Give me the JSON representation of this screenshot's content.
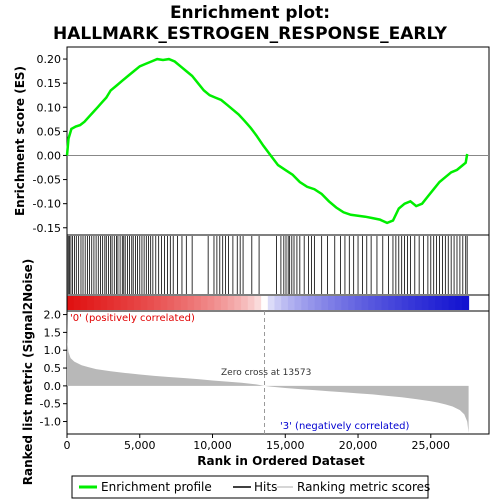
{
  "chart_data": {
    "type": "line",
    "title_lines": [
      "Enrichment plot:",
      "HALLMARK_ESTROGEN_RESPONSE_EARLY"
    ],
    "xlabel": "Rank in Ordered Dataset",
    "es_panel": {
      "ylabel": "Enrichment score (ES)",
      "ylim": [
        -0.165,
        0.225
      ],
      "yticks": [
        -0.15,
        -0.1,
        -0.05,
        0.0,
        0.05,
        0.1,
        0.15,
        0.2
      ],
      "ytick_labels": [
        "-0.15",
        "-0.10",
        "-0.05",
        "0.00",
        "0.05",
        "0.10",
        "0.15",
        "0.20"
      ],
      "series": [
        {
          "name": "Enrichment profile",
          "color": "#00ee00",
          "x": [
            0,
            100,
            300,
            600,
            900,
            1200,
            1500,
            1800,
            2100,
            2400,
            2700,
            3000,
            3400,
            3800,
            4200,
            4600,
            5000,
            5400,
            5800,
            6200,
            6600,
            7000,
            7400,
            7800,
            8200,
            8600,
            9000,
            9400,
            9800,
            10200,
            10600,
            11000,
            11400,
            11800,
            12200,
            12600,
            13000,
            13500,
            14000,
            14500,
            15000,
            15500,
            16000,
            16500,
            17000,
            17500,
            18000,
            18500,
            19000,
            19500,
            20000,
            20500,
            21000,
            21500,
            22000,
            22400,
            22800,
            23200,
            23600,
            24000,
            24400,
            24800,
            25200,
            25600,
            26000,
            26400,
            26800,
            27000,
            27200,
            27400,
            27500
          ],
          "y": [
            0.0,
            0.035,
            0.055,
            0.06,
            0.063,
            0.07,
            0.08,
            0.09,
            0.1,
            0.11,
            0.12,
            0.135,
            0.145,
            0.155,
            0.165,
            0.175,
            0.185,
            0.19,
            0.195,
            0.2,
            0.198,
            0.2,
            0.195,
            0.185,
            0.175,
            0.165,
            0.15,
            0.135,
            0.125,
            0.12,
            0.115,
            0.105,
            0.095,
            0.085,
            0.072,
            0.058,
            0.042,
            0.02,
            0.0,
            -0.02,
            -0.03,
            -0.04,
            -0.055,
            -0.065,
            -0.07,
            -0.08,
            -0.095,
            -0.108,
            -0.118,
            -0.123,
            -0.125,
            -0.127,
            -0.13,
            -0.133,
            -0.14,
            -0.135,
            -0.11,
            -0.1,
            -0.095,
            -0.105,
            -0.1,
            -0.085,
            -0.07,
            -0.055,
            -0.045,
            -0.035,
            -0.03,
            -0.025,
            -0.02,
            -0.015,
            0.003
          ]
        }
      ],
      "hits": [
        20,
        90,
        180,
        270,
        380,
        520,
        640,
        800,
        960,
        1100,
        1250,
        1400,
        1550,
        1700,
        1850,
        2000,
        2150,
        2300,
        2450,
        2600,
        2700,
        2850,
        3000,
        3100,
        3250,
        3400,
        3500,
        3650,
        3800,
        3900,
        4000,
        4150,
        4300,
        4450,
        4550,
        4700,
        4850,
        5000,
        5150,
        5300,
        5450,
        5600,
        5750,
        5900,
        6100,
        6300,
        6500,
        6700,
        6900,
        7100,
        7300,
        7600,
        7900,
        8200,
        8600,
        9700,
        10100,
        10300,
        10500,
        10700,
        10900,
        11100,
        11400,
        11700,
        11900,
        12100,
        12700,
        13200,
        14400,
        14700,
        14900,
        15050,
        15200,
        15300,
        15450,
        15600,
        15800,
        16000,
        16300,
        16600,
        16800,
        17000,
        17500,
        17900,
        18400,
        18800,
        19100,
        19400,
        19700,
        20000,
        20300,
        20600,
        20900,
        21300,
        21700,
        22100,
        22400,
        22600,
        22800,
        23000,
        23200,
        23400,
        23600,
        23900,
        24200,
        24500,
        24800,
        25000,
        25200,
        25400,
        25600,
        25800,
        26000,
        26200,
        26400,
        26600,
        26800,
        27000,
        27200,
        27400,
        27500
      ]
    },
    "metric_panel": {
      "ylabel": "Ranked list metric (Signal2Noise)",
      "ylim": [
        -1.35,
        2.1
      ],
      "yticks": [
        -1.0,
        -0.5,
        0.0,
        0.5,
        1.0,
        1.5,
        2.0
      ],
      "ytick_labels": [
        "-1.0",
        "-0.5",
        "0.0",
        "0.5",
        "1.0",
        "1.5",
        "2.0"
      ],
      "curve": {
        "x": [
          0,
          30,
          100,
          250,
          500,
          1000,
          1500,
          2000,
          3000,
          4000,
          5000,
          6000,
          7000,
          8000,
          9000,
          10000,
          11000,
          12000,
          13000,
          13573,
          14000,
          15000,
          16000,
          17000,
          18000,
          19000,
          20000,
          21000,
          22000,
          23000,
          24000,
          25000,
          25500,
          26000,
          26500,
          27000,
          27300,
          27500,
          27600
        ],
        "y": [
          2.0,
          1.2,
          0.95,
          0.78,
          0.68,
          0.58,
          0.52,
          0.47,
          0.41,
          0.36,
          0.32,
          0.28,
          0.25,
          0.22,
          0.19,
          0.15,
          0.12,
          0.09,
          0.04,
          0.0,
          -0.02,
          -0.06,
          -0.09,
          -0.12,
          -0.15,
          -0.18,
          -0.21,
          -0.24,
          -0.28,
          -0.32,
          -0.37,
          -0.43,
          -0.47,
          -0.52,
          -0.58,
          -0.68,
          -0.8,
          -1.0,
          -1.32
        ]
      },
      "zero_cross": 13573,
      "zero_cross_label": "Zero cross at 13573",
      "pos_label": "'0' (positively correlated)",
      "neg_label": "'3' (negatively correlated)"
    },
    "x_axis": {
      "xlim": [
        0,
        29000
      ],
      "xticks": [
        0,
        5000,
        10000,
        15000,
        20000,
        25000
      ],
      "xtick_labels": [
        "0",
        "5,000",
        "10,000",
        "15,000",
        "20,000",
        "25,000"
      ],
      "n_ranks": 27600
    },
    "legend": {
      "placement": "bottom",
      "items": [
        {
          "label": "Enrichment profile",
          "color": "#00ee00"
        },
        {
          "label": "Hits",
          "color": "#000000"
        },
        {
          "label": "Ranking metric scores",
          "color": "#c8c8c8"
        }
      ]
    },
    "colors": {
      "heat_pos": "#e01010",
      "heat_neg": "#1010d0",
      "metric_fill": "#b8b8b8"
    }
  }
}
